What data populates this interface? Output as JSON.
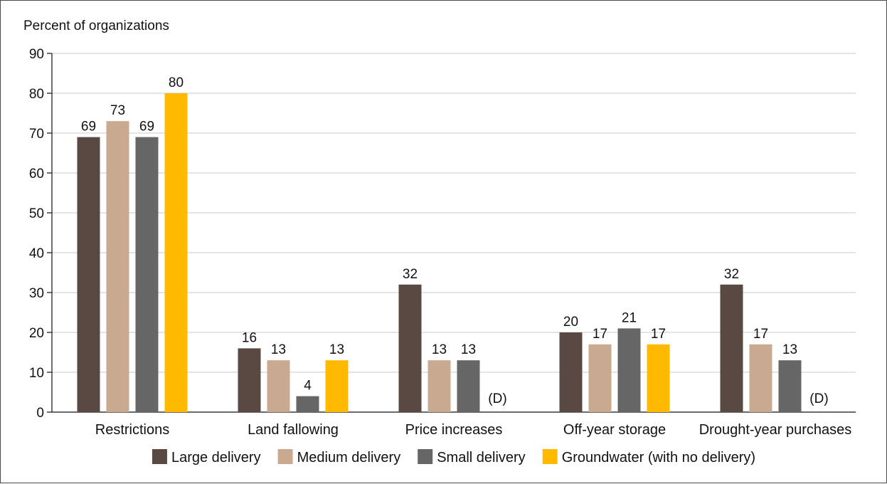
{
  "chart_data": {
    "type": "bar",
    "ylabel": "Percent of organizations",
    "ylim": [
      0,
      90
    ],
    "yticks": [
      0,
      10,
      20,
      30,
      40,
      50,
      60,
      70,
      80,
      90
    ],
    "grid": true,
    "legend_position": "bottom",
    "categories": [
      "Restrictions",
      "Land fallowing",
      "Price increases",
      "Off-year storage",
      "Drought-year purchases"
    ],
    "series": [
      {
        "name": "Large delivery",
        "color": "#5a4842",
        "values": [
          69,
          16,
          32,
          20,
          32
        ],
        "labels": [
          "69",
          "16",
          "32",
          "20",
          "32"
        ]
      },
      {
        "name": "Medium delivery",
        "color": "#c9a990",
        "values": [
          73,
          13,
          13,
          17,
          17
        ],
        "labels": [
          "73",
          "13",
          "13",
          "17",
          "17"
        ]
      },
      {
        "name": "Small delivery",
        "color": "#666666",
        "values": [
          69,
          4,
          13,
          21,
          13
        ],
        "labels": [
          "69",
          "4",
          "13",
          "21",
          "13"
        ]
      },
      {
        "name": "Groundwater (with no delivery)",
        "color": "#ffba00",
        "values": [
          80,
          13,
          null,
          17,
          null
        ],
        "labels": [
          "80",
          "13",
          "(D)",
          "17",
          "(D)"
        ]
      }
    ]
  }
}
